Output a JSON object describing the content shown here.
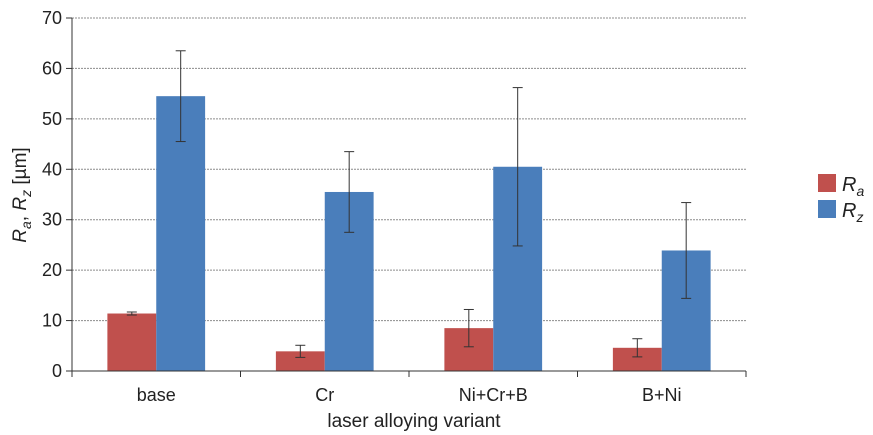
{
  "chart_data": {
    "type": "bar",
    "categories": [
      "base",
      "Cr",
      "Ni+Cr+B",
      "B+Ni"
    ],
    "series": [
      {
        "name": "Ra",
        "name_main": "R",
        "name_sub": "a",
        "color": "#c0504d",
        "values": [
          11.4,
          3.9,
          8.5,
          4.6
        ],
        "errors": [
          0.3,
          1.2,
          3.7,
          1.8
        ]
      },
      {
        "name": "Rz",
        "name_main": "R",
        "name_sub": "z",
        "color": "#4a7ebb",
        "values": [
          54.5,
          35.5,
          40.5,
          23.9
        ],
        "errors": [
          9.0,
          8.0,
          15.7,
          9.5
        ]
      }
    ],
    "xlabel": "laser alloying variant",
    "ylabel": "Ra, Rz [µm]",
    "ylabel_parts": {
      "r1": "R",
      "s1": "a",
      "sep": ", ",
      "r2": "R",
      "s2": "z",
      "unit": " [µm]"
    },
    "ylim": [
      0,
      70
    ],
    "yticks": [
      0,
      10,
      20,
      30,
      40,
      50,
      60,
      70
    ],
    "grid": true,
    "legend_position": "right"
  }
}
